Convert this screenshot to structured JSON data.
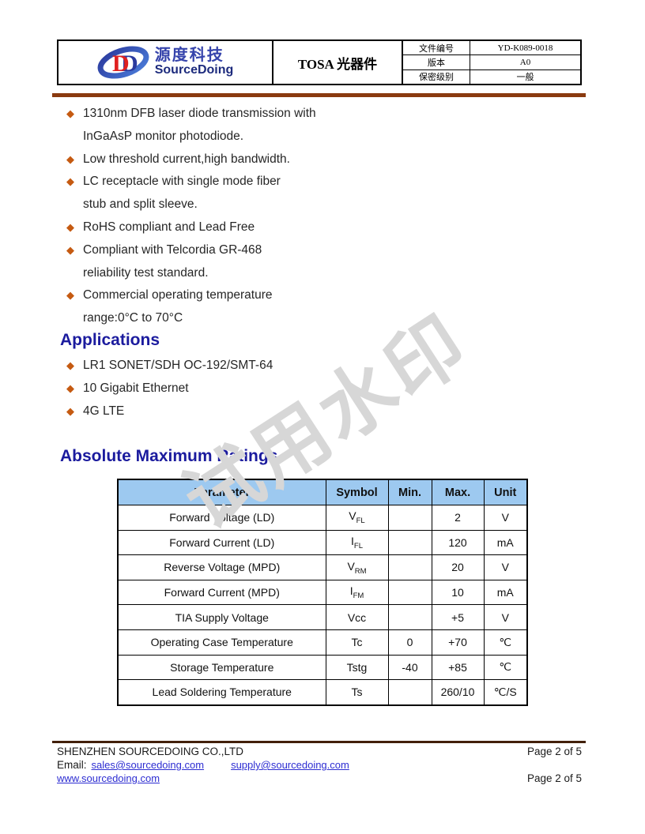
{
  "header": {
    "logo": {
      "cn": "源度科技",
      "en": "SourceDoing"
    },
    "title": "TOSA 光器件",
    "info_rows": [
      {
        "label": "文件编号",
        "value": "YD-K089-0018"
      },
      {
        "label": "版本",
        "value": "A0"
      },
      {
        "label": "保密级别",
        "value": "一般"
      }
    ]
  },
  "features": {
    "items": [
      {
        "lines": [
          "1310nm DFB laser diode transmission with",
          "InGaAsP monitor photodiode."
        ]
      },
      {
        "lines": [
          "Low threshold current,high bandwidth."
        ]
      },
      {
        "lines": [
          "LC receptacle with single mode fiber",
          "stub and split sleeve."
        ]
      },
      {
        "lines": [
          "RoHS compliant and Lead Free"
        ]
      },
      {
        "lines": [
          "Compliant with Telcordia GR-468",
          "reliability test standard."
        ]
      },
      {
        "lines": [
          "Commercial operating temperature",
          "range:0°C to 70°C"
        ]
      }
    ]
  },
  "applications": {
    "heading": "Applications",
    "items": [
      "LR1 SONET/SDH OC-192/SMT-64",
      "10 Gigabit Ethernet",
      "4G LTE"
    ]
  },
  "ratings": {
    "heading": "Absolute Maximum Ratings",
    "columns": [
      "Parameter",
      "Symbol",
      "Min.",
      "Max.",
      "Unit"
    ],
    "rows": [
      {
        "parameter": "Forward Voltage (LD)",
        "symbol_base": "V",
        "symbol_sub": "FL",
        "min": "",
        "max": "2",
        "unit": "V"
      },
      {
        "parameter": "Forward Current (LD)",
        "symbol_base": "I",
        "symbol_sub": "FL",
        "min": "",
        "max": "120",
        "unit": "mA"
      },
      {
        "parameter": "Reverse Voltage (MPD)",
        "symbol_base": "V",
        "symbol_sub": "RM",
        "min": "",
        "max": "20",
        "unit": "V"
      },
      {
        "parameter": "Forward Current (MPD)",
        "symbol_base": "I",
        "symbol_sub": "FM",
        "min": "",
        "max": "10",
        "unit": "mA"
      },
      {
        "parameter": "TIA Supply Voltage",
        "symbol_base": "Vcc",
        "symbol_sub": "",
        "min": "",
        "max": "+5",
        "unit": "V"
      },
      {
        "parameter": "Operating Case Temperature",
        "symbol_base": "Tc",
        "symbol_sub": "",
        "min": "0",
        "max": "+70",
        "unit": "℃"
      },
      {
        "parameter": "Storage Temperature",
        "symbol_base": "Tstg",
        "symbol_sub": "",
        "min": "-40",
        "max": "+85",
        "unit": "℃"
      },
      {
        "parameter": "Lead Soldering Temperature",
        "symbol_base": "Ts",
        "symbol_sub": "",
        "min": "",
        "max": "260/10",
        "unit": "℃/S"
      }
    ]
  },
  "watermark": {
    "text": "试用水印"
  },
  "footer": {
    "company": "SHENZHEN SOURCEDOING CO.,LTD",
    "email_label": "Email:",
    "email1": "sales@sourcedoing.com",
    "email2": "supply@sourcedoing.com",
    "website": "www.sourcedoing.com",
    "page1": "Page 2 of 5",
    "page2": "Page 2 of 5"
  },
  "colors": {
    "accent_rule": "#8a3a0f",
    "heading_blue": "#1b1b9e",
    "bullet_orange": "#c55a11",
    "table_header_bg": "#9dc9f0",
    "link_blue": "#2d2dd2",
    "watermark_gray": "#d7d7d7",
    "logo_blue": "#3543ab",
    "logo_red": "#e02020"
  }
}
